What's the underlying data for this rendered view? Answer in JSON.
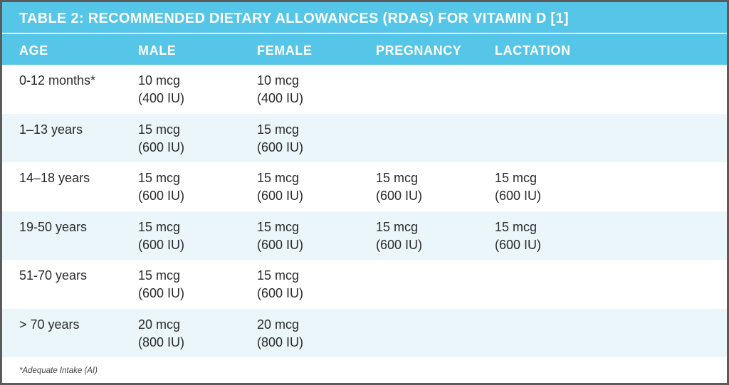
{
  "chart_data": {
    "type": "table",
    "title": "TABLE 2: RECOMMENDED DIETARY ALLOWANCES (RDAS) FOR VITAMIN D [1]",
    "columns": [
      "AGE",
      "MALE",
      "FEMALE",
      "PREGNANCY",
      "LACTATION"
    ],
    "rows": [
      {
        "age": "0-12 months*",
        "male": [
          "10 mcg",
          "(400 IU)"
        ],
        "female": [
          "10 mcg",
          "(400 IU)"
        ],
        "pregnancy": [
          "",
          ""
        ],
        "lactation": [
          "",
          ""
        ]
      },
      {
        "age": "1–13 years",
        "male": [
          "15 mcg",
          "(600 IU)"
        ],
        "female": [
          "15 mcg",
          "(600 IU)"
        ],
        "pregnancy": [
          "",
          ""
        ],
        "lactation": [
          "",
          ""
        ]
      },
      {
        "age": "14–18 years",
        "male": [
          "15 mcg",
          "(600 IU)"
        ],
        "female": [
          "15 mcg",
          "(600 IU)"
        ],
        "pregnancy": [
          "15 mcg",
          "(600 IU)"
        ],
        "lactation": [
          "15 mcg",
          "(600 IU)"
        ]
      },
      {
        "age": "19-50 years",
        "male": [
          "15 mcg",
          "(600 IU)"
        ],
        "female": [
          "15 mcg",
          "(600 IU)"
        ],
        "pregnancy": [
          "15 mcg",
          "(600 IU)"
        ],
        "lactation": [
          "15 mcg",
          "(600 IU)"
        ]
      },
      {
        "age": "51-70 years",
        "male": [
          "15 mcg",
          "(600 IU)"
        ],
        "female": [
          "15 mcg",
          "(600 IU)"
        ],
        "pregnancy": [
          "",
          ""
        ],
        "lactation": [
          "",
          ""
        ]
      },
      {
        "age": "> 70 years",
        "male": [
          "20 mcg",
          "(800 IU)"
        ],
        "female": [
          "20 mcg",
          "(800 IU)"
        ],
        "pregnancy": [
          "",
          ""
        ],
        "lactation": [
          "",
          ""
        ]
      }
    ],
    "footnote": "*Adequate Intake (AI)"
  },
  "colors": {
    "header_bg": "#55c5e8",
    "header_text": "#ffffff",
    "alt_row_bg": "#eaf6fa",
    "border": "#5b5b5b"
  }
}
